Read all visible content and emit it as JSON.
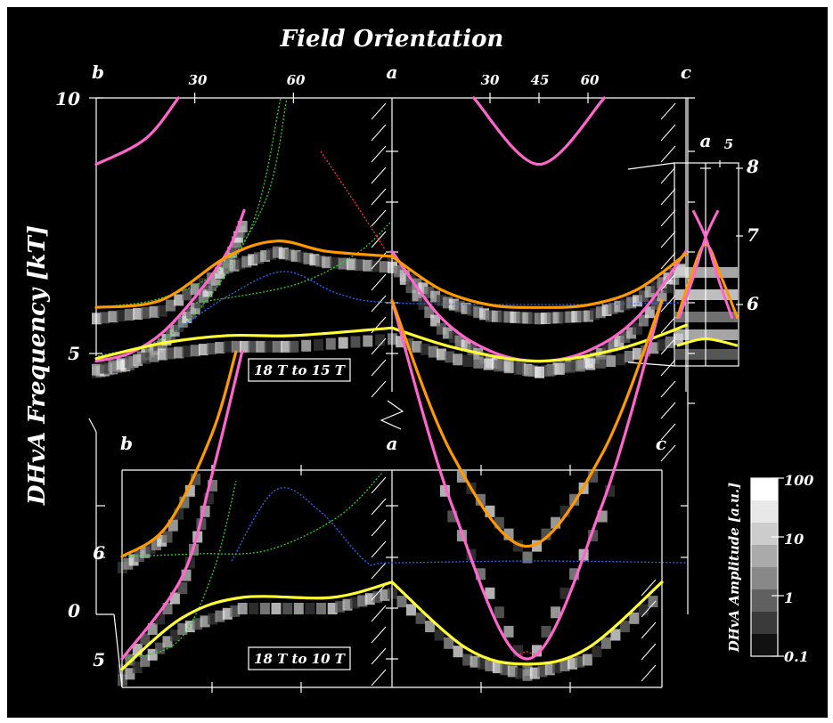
{
  "chart_data": {
    "type": "line",
    "title": "Field Orientation",
    "ylabel": "DHvA Frequency [kT]",
    "top_panel": {
      "label": "18 T to 15 T",
      "angle_axis": {
        "corners": [
          "b",
          "a",
          "c"
        ],
        "ticks_b_to_a": [
          "30",
          "60"
        ],
        "ticks_a_to_c": [
          "30",
          "45",
          "60"
        ]
      },
      "y_ticks": [
        "10",
        "5"
      ],
      "ylim": [
        4.0,
        10.0
      ],
      "series": [
        {
          "color": "#ff66cc",
          "b_to_a": [
            [
              0,
              4.85
            ],
            [
              10,
              5.0
            ],
            [
              20,
              5.4
            ],
            [
              30,
              6.1
            ],
            [
              40,
              7.0
            ],
            [
              45,
              7.8
            ]
          ],
          "a_to_c": [
            [
              0,
              7.0
            ],
            [
              15,
              5.7
            ],
            [
              30,
              5.05
            ],
            [
              45,
              4.85
            ],
            [
              60,
              5.05
            ],
            [
              75,
              5.7
            ],
            [
              90,
              7.0
            ]
          ]
        },
        {
          "color": "#ff9900",
          "b_to_a": [
            [
              0,
              5.9
            ],
            [
              20,
              6.05
            ],
            [
              40,
              6.9
            ],
            [
              55,
              7.2
            ],
            [
              70,
              7.0
            ],
            [
              90,
              6.9
            ]
          ],
          "a_to_c": [
            [
              0,
              6.9
            ],
            [
              15,
              6.25
            ],
            [
              30,
              5.95
            ],
            [
              45,
              5.9
            ],
            [
              60,
              5.95
            ],
            [
              75,
              6.25
            ],
            [
              90,
              6.95
            ]
          ]
        },
        {
          "color": "#ffff33",
          "b_to_a": [
            [
              0,
              4.9
            ],
            [
              20,
              5.2
            ],
            [
              40,
              5.35
            ],
            [
              60,
              5.35
            ],
            [
              90,
              5.5
            ]
          ],
          "a_to_c": [
            [
              0,
              5.5
            ],
            [
              20,
              5.1
            ],
            [
              45,
              4.85
            ],
            [
              70,
              5.1
            ],
            [
              90,
              5.55
            ]
          ]
        },
        {
          "color": "#ff66cc",
          "b_to_a": [
            [
              0,
              8.7
            ],
            [
              15,
              9.2
            ],
            [
              25,
              10.0
            ]
          ],
          "a_to_c": [
            [
              25,
              10.0
            ],
            [
              45,
              8.7
            ],
            [
              65,
              10.0
            ]
          ]
        }
      ]
    },
    "inset": {
      "corner": "a",
      "tick": "5",
      "y_ticks": [
        "8",
        "7",
        "6"
      ],
      "ylim": [
        5.2,
        8.2
      ]
    },
    "bottom_panel": {
      "label": "18 T to 10 T",
      "angle_axis": {
        "corners": [
          "b",
          "a",
          "c"
        ]
      },
      "y_ticks": [
        "6",
        "0",
        "5"
      ],
      "series": [
        {
          "color": "#ff66cc",
          "b_to_a": [
            [
              0,
              5.0
            ],
            [
              20,
              5.8
            ],
            [
              30,
              6.8
            ],
            [
              40,
              8.0
            ]
          ],
          "a_to_c": [
            [
              0,
              8.5
            ],
            [
              20,
              6.5
            ],
            [
              45,
              5.0
            ],
            [
              70,
              6.5
            ],
            [
              90,
              8.5
            ]
          ]
        },
        {
          "color": "#ff9900",
          "b_to_a": [
            [
              0,
              6.0
            ],
            [
              15,
              6.3
            ],
            [
              30,
              7.2
            ],
            [
              38,
              8.0
            ]
          ],
          "a_to_c": [
            [
              0,
              8.5
            ],
            [
              20,
              7.0
            ],
            [
              45,
              6.1
            ],
            [
              70,
              7.0
            ],
            [
              90,
              8.5
            ]
          ]
        },
        {
          "color": "#ffff33",
          "b_to_a": [
            [
              0,
              4.9
            ],
            [
              20,
              5.4
            ],
            [
              40,
              5.6
            ],
            [
              70,
              5.6
            ],
            [
              90,
              5.75
            ]
          ],
          "a_to_c": [
            [
              0,
              5.75
            ],
            [
              25,
              5.1
            ],
            [
              45,
              4.95
            ],
            [
              65,
              5.1
            ],
            [
              90,
              5.75
            ]
          ]
        }
      ]
    },
    "colorbar": {
      "label": "DHvA Amplitude [a.u.]",
      "ticks": [
        "100",
        "10",
        "1",
        "0.1"
      ],
      "scale": "log",
      "range": [
        0.1,
        100
      ]
    }
  }
}
